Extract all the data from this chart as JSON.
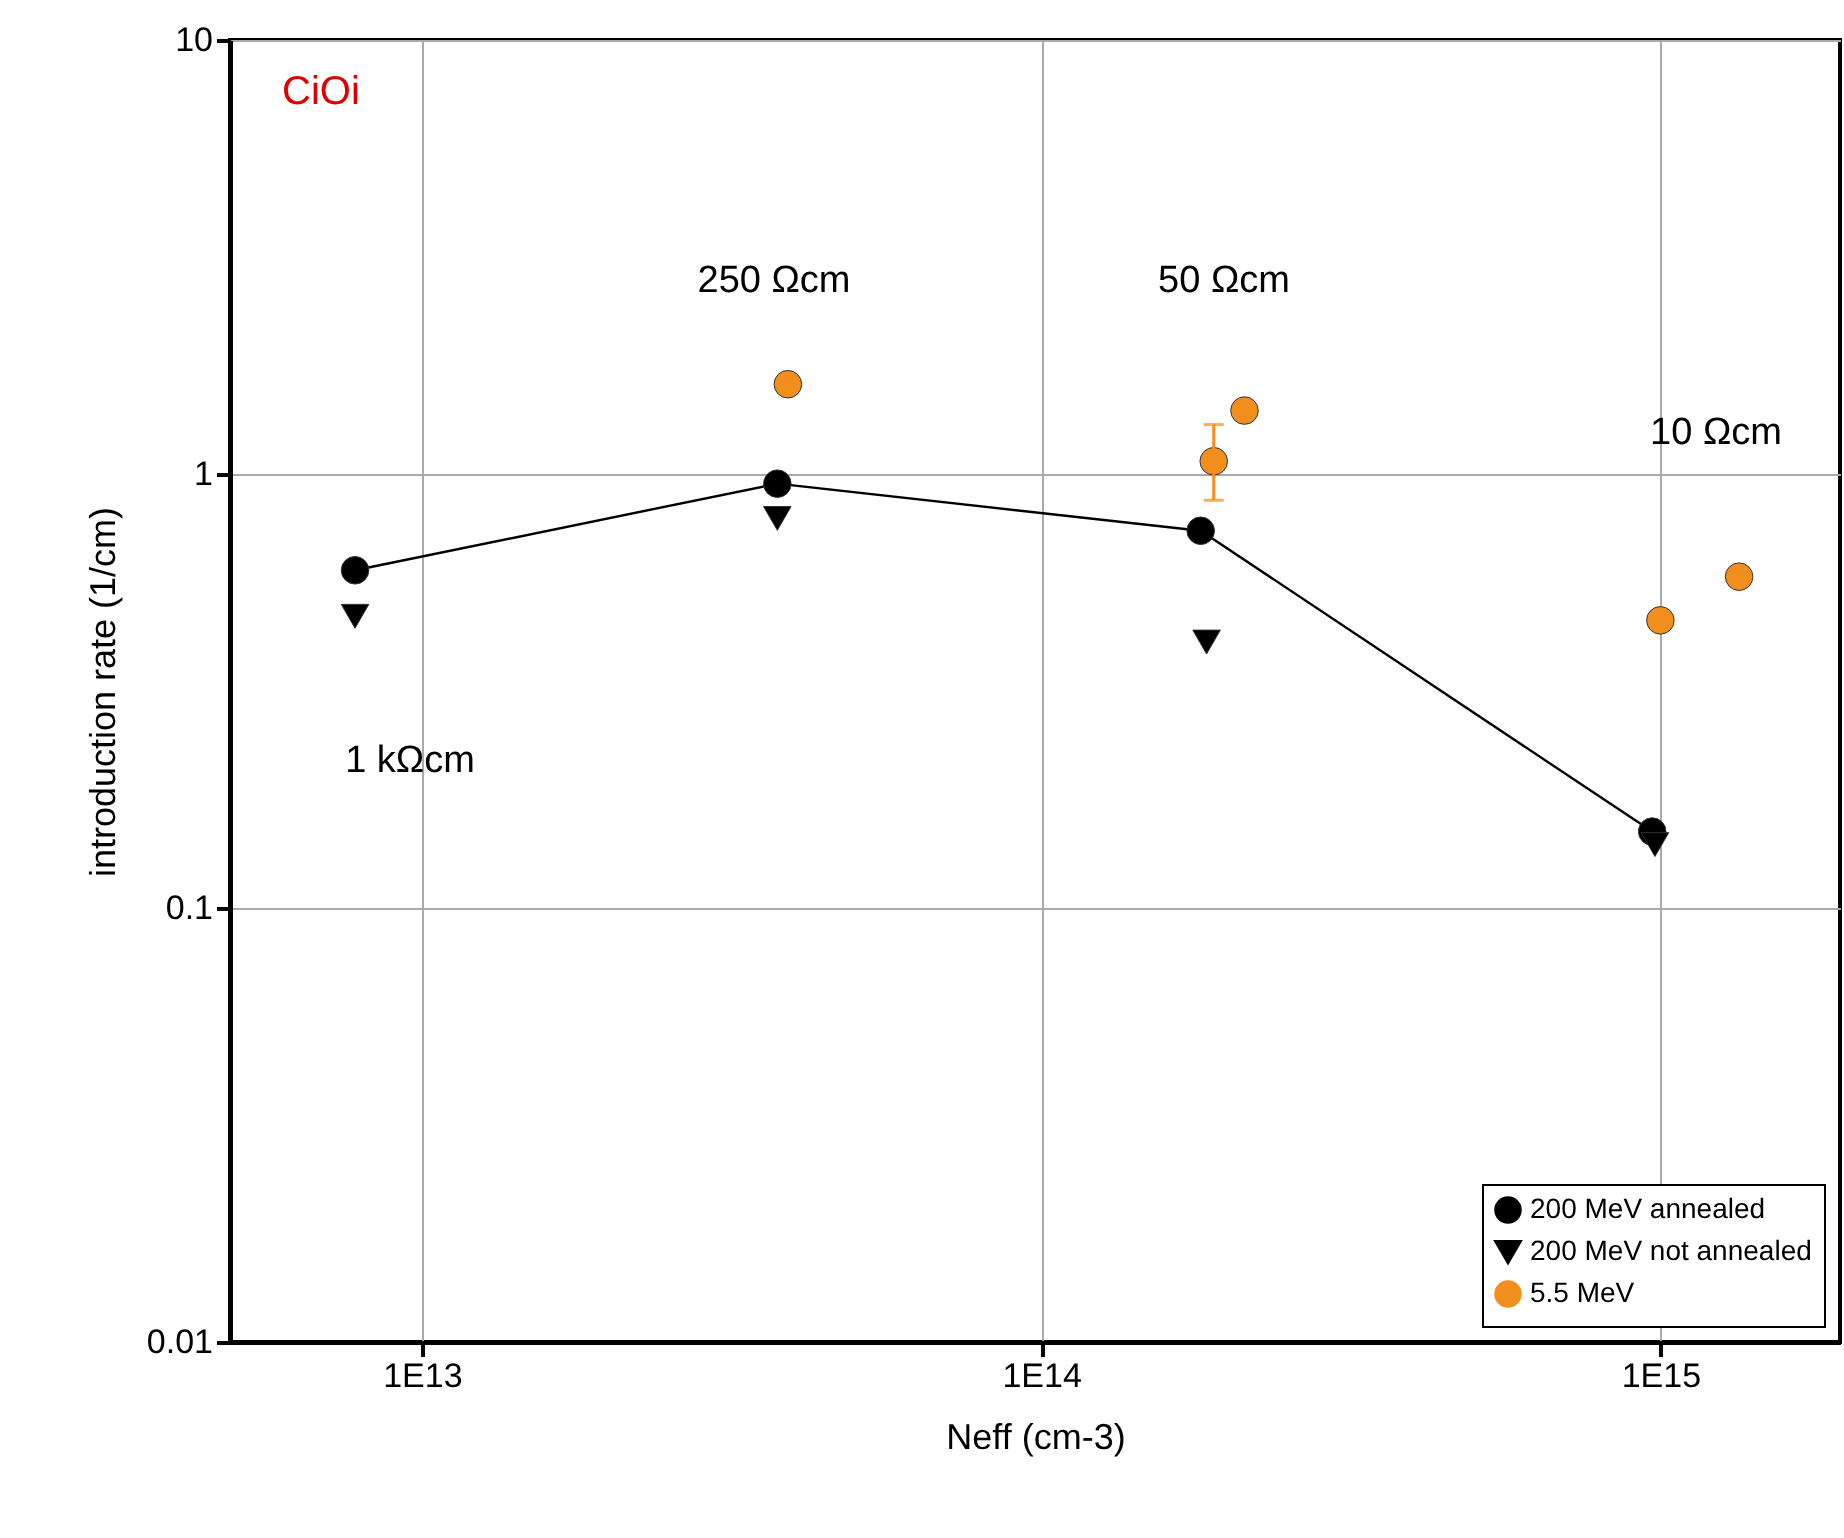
{
  "chart_data": {
    "type": "scatter",
    "title": "CiOi",
    "xlabel": "Neff (cm-3)",
    "ylabel": "introduction rate (1/cm)",
    "log": "xy",
    "grid": true,
    "legend": "bottom right",
    "xlim": [
      4900000000000.0,
      1950000000000000.0
    ],
    "xticks": [
      {
        "value": 10000000000000.0,
        "label": "1E13"
      },
      {
        "value": 100000000000000.0,
        "label": "1E14"
      },
      {
        "value": 1000000000000000.0,
        "label": "1E15"
      }
    ],
    "ylim": [
      0.01,
      10
    ],
    "yticks": [
      0.01,
      0.1,
      1,
      10
    ],
    "series": [
      {
        "name": "200 MeV annealed",
        "type": "line",
        "marker": "circle",
        "color": "#000000",
        "x": [
          7800000000000.0,
          37500000000000.0,
          181000000000000.0,
          970000000000000.0
        ],
        "values": [
          0.6,
          0.95,
          0.74,
          0.15
        ]
      },
      {
        "name": "200 MeV not annealed",
        "type": "scatter",
        "marker": "triangle",
        "color": "#000000",
        "x": [
          7800000000000.0,
          37500000000000.0,
          185000000000000.0,
          980000000000000.0
        ],
        "values": [
          0.47,
          0.79,
          0.41,
          0.14
        ]
      },
      {
        "name": "5.5 MeV",
        "type": "scatter",
        "marker": "circle",
        "color": "#f28e1c",
        "x": [
          39000000000000.0,
          190000000000000.0,
          213000000000000.0,
          1000000000000000.0,
          1340000000000000.0
        ],
        "values": [
          1.61,
          1.07,
          1.4,
          0.46,
          0.58
        ],
        "errors": [
          null,
          [
            0.87,
            1.3
          ],
          null,
          null,
          null
        ]
      }
    ],
    "annotations": [
      "1 kΩcm",
      "250 Ωcm",
      "50 Ωcm",
      "10 Ωcm"
    ]
  }
}
